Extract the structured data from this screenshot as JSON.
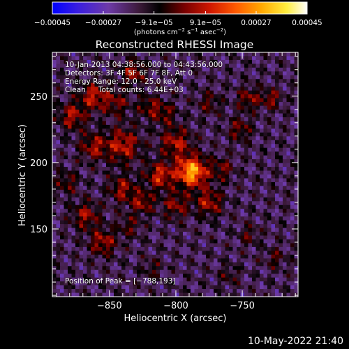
{
  "footer": {
    "date": "10-May-2022 21:40"
  },
  "colors": {
    "background": "#000000",
    "foreground": "#ffffff",
    "colormap_stops": [
      "#0000ff",
      "#3a1ee0",
      "#6e3aa8",
      "#3c1a3a",
      "#000000",
      "#7a0000",
      "#d01800",
      "#ff5a00",
      "#ffa800",
      "#ffee40",
      "#ffffff"
    ]
  },
  "chart_data": {
    "type": "heatmap",
    "title": "Reconstructed RHESSI Image",
    "xlabel": "Heliocentric X (arcsec)",
    "ylabel": "Heliocentric Y (arcsec)",
    "xlim": [
      -893,
      -708
    ],
    "ylim": [
      99,
      283
    ],
    "x_ticks": [
      -850,
      -800,
      -750
    ],
    "y_ticks": [
      150,
      200,
      250
    ],
    "x_tick_labels": [
      "−850",
      "−800",
      "−750"
    ],
    "y_tick_labels": [
      "150",
      "200",
      "250"
    ],
    "colorbar": {
      "min": -0.00045,
      "max": 0.00045,
      "ticks": [
        -0.00045,
        -0.00027,
        -9.1e-05,
        9.1e-05,
        0.00027,
        0.00045
      ],
      "tick_labels": [
        "−0.00045",
        "−0.00027",
        "−9.1e−05",
        "9.1e−05",
        "0.00027",
        "0.00045"
      ],
      "units_prefix": "(photons cm",
      "units_exp1": "−2",
      "units_mid1": " s",
      "units_exp2": "−1",
      "units_mid2": " asec",
      "units_exp3": "−2",
      "units_suffix": ")"
    },
    "annotations": {
      "time_range": "10-Jan-2013 04:38:56.000 to 04:43:56.000",
      "detectors": "Detectors: 3F 4F 5F 6F 7F 8F, Att 0",
      "energy": "Energy Range: 12.0 - 25.0 keV",
      "method": "Clean",
      "counts": "Total counts: 6.44E+03",
      "peak": "Position of Peak = [−788,193]"
    },
    "peak": {
      "x": -788,
      "y": 193,
      "value": 0.00045
    },
    "sources": [
      {
        "x": -788,
        "y": 193,
        "sigma": 8,
        "amp": 0.00045
      },
      {
        "x": -812,
        "y": 190,
        "sigma": 7,
        "amp": 0.00026
      },
      {
        "x": -800,
        "y": 215,
        "sigma": 8,
        "amp": 0.00022
      },
      {
        "x": -840,
        "y": 213,
        "sigma": 9,
        "amp": 0.00024
      },
      {
        "x": -862,
        "y": 212,
        "sigma": 7,
        "amp": 0.0002
      },
      {
        "x": -878,
        "y": 235,
        "sigma": 7,
        "amp": 0.00022
      },
      {
        "x": -862,
        "y": 250,
        "sigma": 7,
        "amp": 0.00024
      },
      {
        "x": -832,
        "y": 268,
        "sigma": 6,
        "amp": 0.00022
      },
      {
        "x": -845,
        "y": 245,
        "sigma": 7,
        "amp": 0.00016
      },
      {
        "x": -820,
        "y": 242,
        "sigma": 6,
        "amp": 0.00016
      },
      {
        "x": -840,
        "y": 180,
        "sigma": 7,
        "amp": 0.0002
      },
      {
        "x": -825,
        "y": 170,
        "sigma": 6,
        "amp": 0.0002
      },
      {
        "x": -800,
        "y": 168,
        "sigma": 7,
        "amp": 0.00018
      },
      {
        "x": -775,
        "y": 170,
        "sigma": 7,
        "amp": 0.00022
      },
      {
        "x": -765,
        "y": 195,
        "sigma": 6,
        "amp": 0.00015
      },
      {
        "x": -752,
        "y": 225,
        "sigma": 6,
        "amp": 0.00016
      },
      {
        "x": -745,
        "y": 248,
        "sigma": 6,
        "amp": 0.00018
      },
      {
        "x": -775,
        "y": 245,
        "sigma": 6,
        "amp": 0.00013
      },
      {
        "x": -808,
        "y": 237,
        "sigma": 6,
        "amp": 0.00015
      },
      {
        "x": -868,
        "y": 160,
        "sigma": 7,
        "amp": 0.0002
      },
      {
        "x": -855,
        "y": 140,
        "sigma": 7,
        "amp": 0.00021
      },
      {
        "x": -835,
        "y": 152,
        "sigma": 6,
        "amp": 0.00012
      },
      {
        "x": -728,
        "y": 248,
        "sigma": 5,
        "amp": 0.00018
      },
      {
        "x": -745,
        "y": 145,
        "sigma": 5,
        "amp": 0.00012
      },
      {
        "x": -818,
        "y": 120,
        "sigma": 5,
        "amp": 0.0001
      },
      {
        "x": -760,
        "y": 115,
        "sigma": 5,
        "amp": 0.0001
      },
      {
        "x": -725,
        "y": 128,
        "sigma": 5,
        "amp": 0.00012
      },
      {
        "x": -882,
        "y": 185,
        "sigma": 6,
        "amp": 0.00014
      }
    ]
  }
}
